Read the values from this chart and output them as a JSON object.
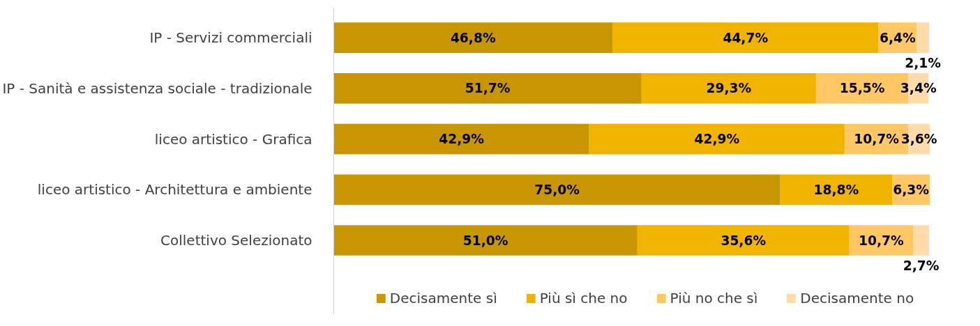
{
  "chart_data": {
    "type": "bar",
    "orientation": "horizontal",
    "stacked": true,
    "categories": [
      "IP - Servizi commerciali",
      "IP - Sanità e assistenza sociale - tradizionale",
      "liceo artistico - Grafica",
      "liceo artistico - Architettura e ambiente",
      "Collettivo Selezionato"
    ],
    "xlim": [
      0,
      100
    ],
    "tick_labels": "y",
    "grid": false,
    "legend": "bottom",
    "series": [
      {
        "name": "Decisamente sì",
        "color": "#c89600",
        "values": [
          46.8,
          51.7,
          42.9,
          75.0,
          51.0
        ],
        "value_labels": [
          "46,8%",
          "51,7%",
          "42,9%",
          "75,0%",
          "51,0%"
        ]
      },
      {
        "name": "Più sì che no",
        "color": "#f0b400",
        "values": [
          44.7,
          29.3,
          42.9,
          18.8,
          35.6
        ],
        "value_labels": [
          "44,7%",
          "29,3%",
          "42,9%",
          "18,8%",
          "35,6%"
        ]
      },
      {
        "name": "Più no che sì",
        "color": "#ffc864",
        "values": [
          6.4,
          15.5,
          10.7,
          6.3,
          10.7
        ],
        "value_labels": [
          "6,4%",
          "15,5%",
          "10,7%",
          "6,3%",
          "10,7%"
        ]
      },
      {
        "name": "Decisamente no",
        "color": "#ffdcaa",
        "values": [
          2.1,
          3.4,
          3.6,
          null,
          2.7
        ],
        "value_labels": [
          "2,1%",
          "3,4%",
          "3,6%",
          null,
          "2,7%"
        ]
      }
    ]
  }
}
